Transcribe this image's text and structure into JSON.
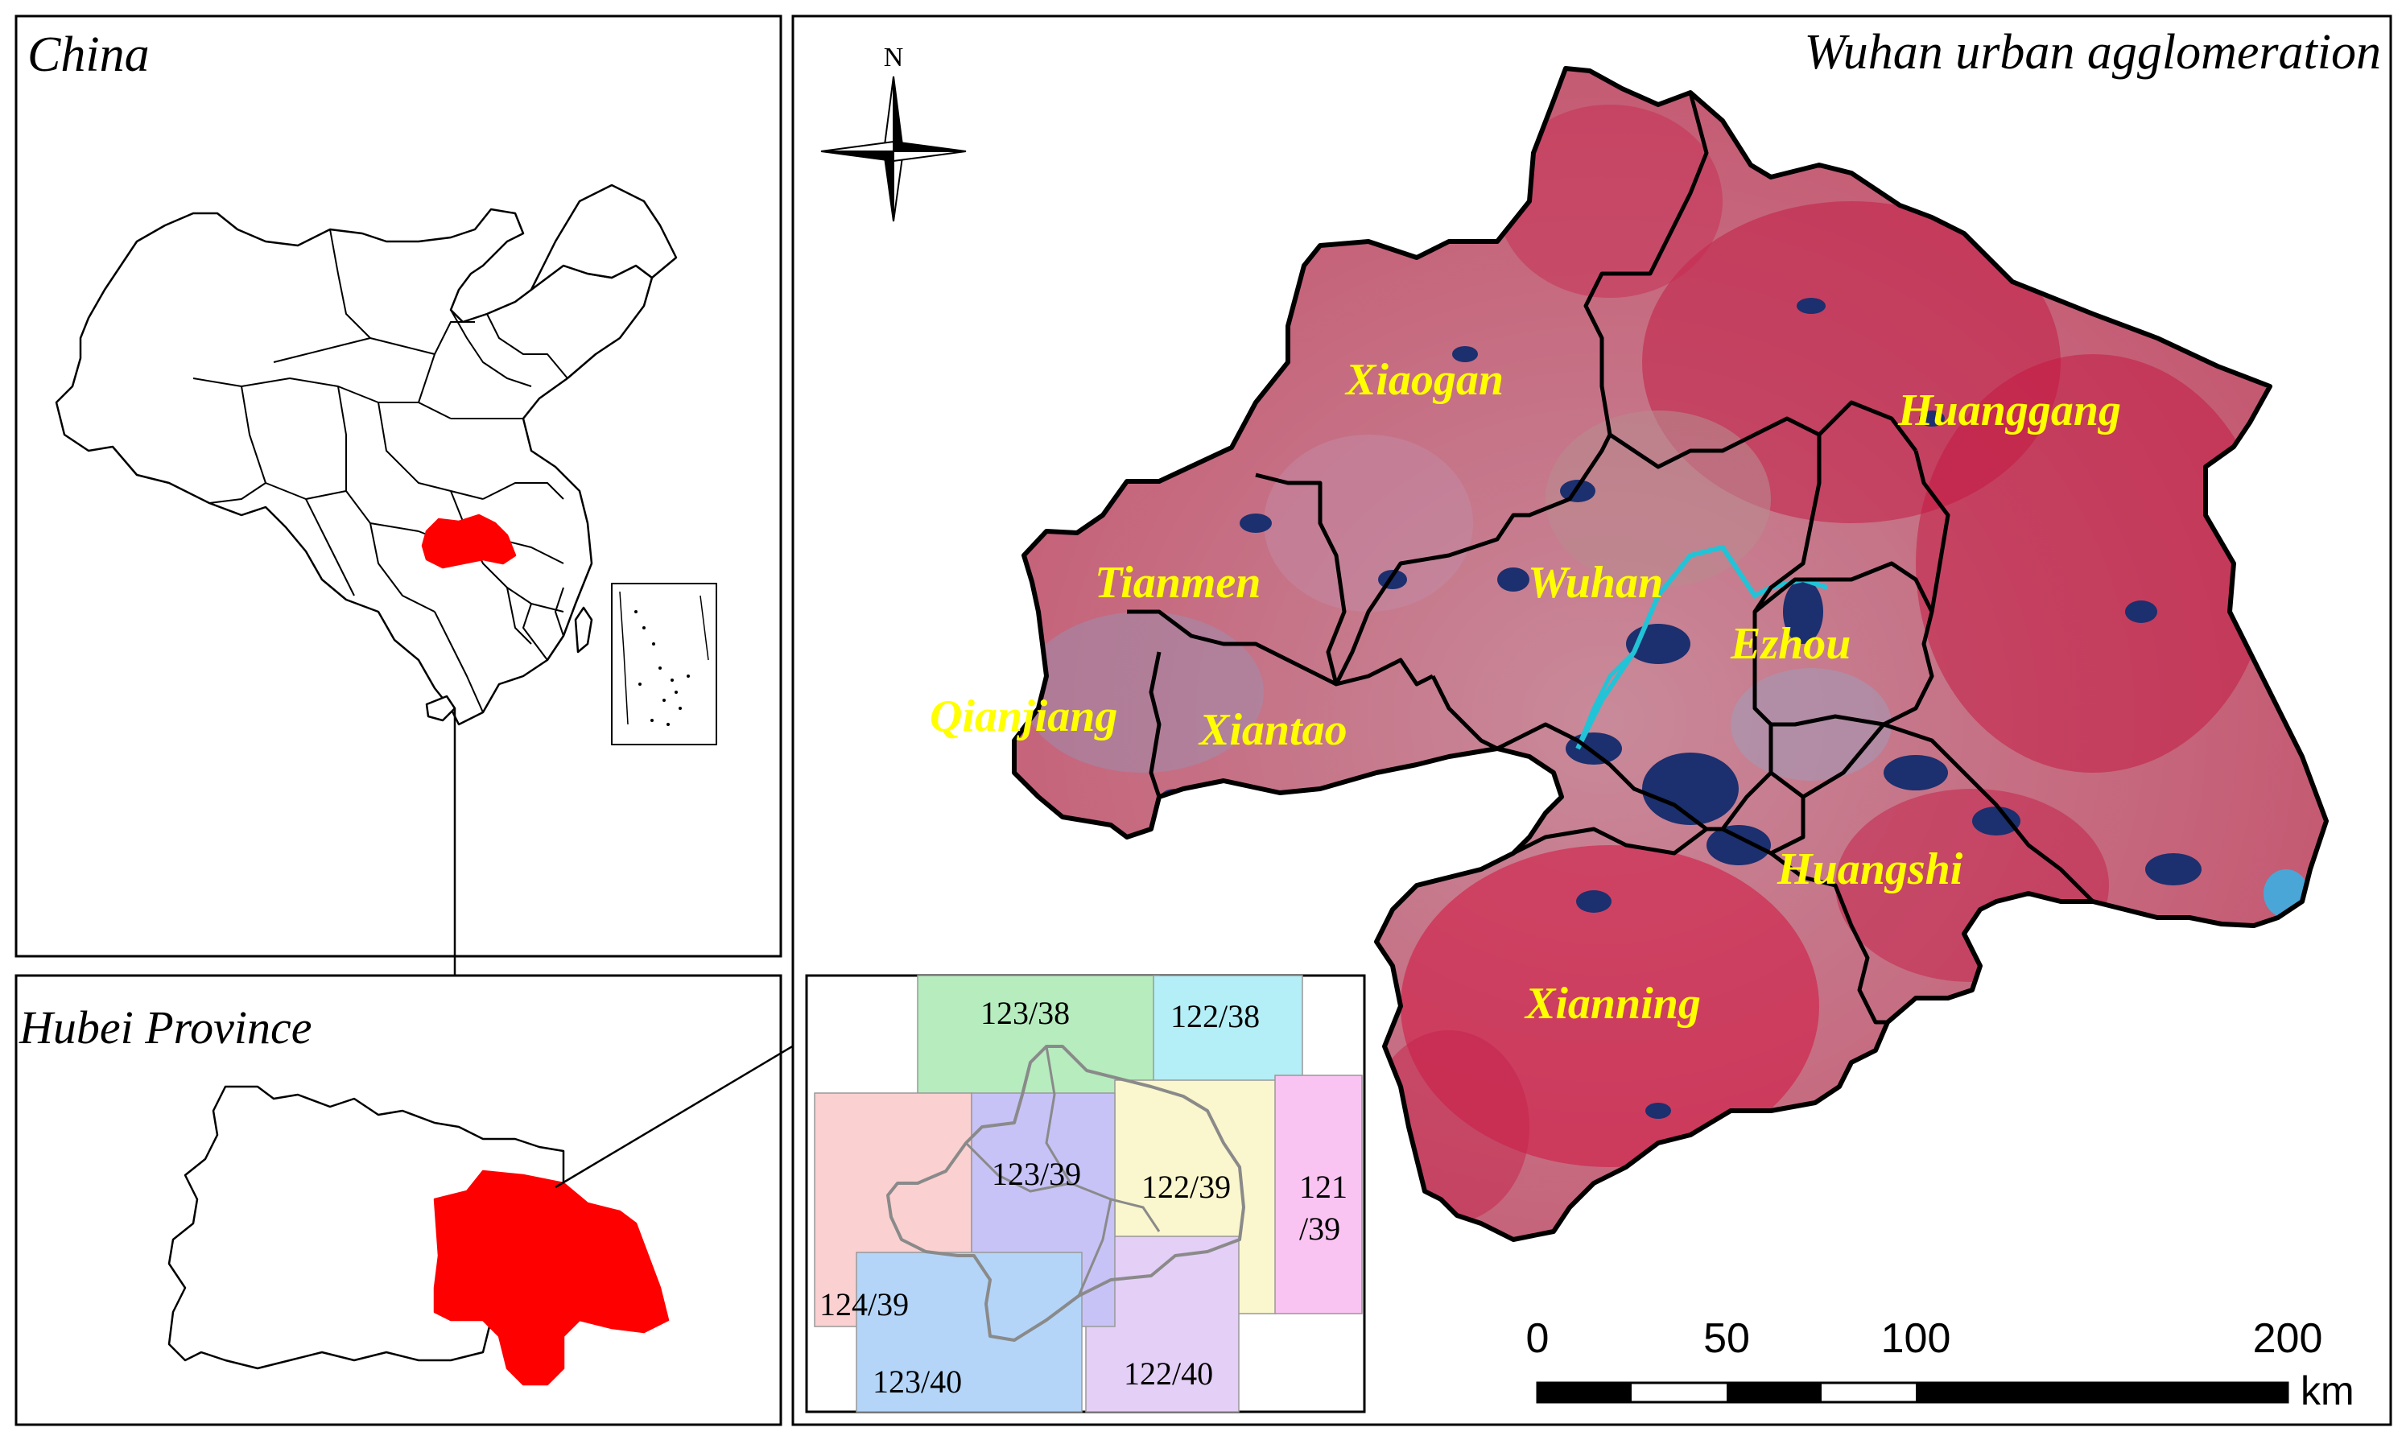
{
  "panels": {
    "china": {
      "title": "China"
    },
    "hubei": {
      "title": "Hubei Province"
    },
    "wuhan": {
      "title": "Wuhan urban agglomeration"
    }
  },
  "north_arrow": {
    "label": "N"
  },
  "cities": [
    {
      "id": "xiaogan",
      "name": "Xiaogan"
    },
    {
      "id": "huanggang",
      "name": "Huanggang"
    },
    {
      "id": "tianmen",
      "name": "Tianmen"
    },
    {
      "id": "wuhan",
      "name": "Wuhan"
    },
    {
      "id": "ezhou",
      "name": "Ezhou"
    },
    {
      "id": "qianjiang",
      "name": "Qianjiang"
    },
    {
      "id": "xiantao",
      "name": "Xiantao"
    },
    {
      "id": "huangshi",
      "name": "Huangshi"
    },
    {
      "id": "xianning",
      "name": "Xianning"
    }
  ],
  "scene_grid": {
    "tiles": [
      {
        "id": "123-38",
        "label": "123/38",
        "color": "#b6ecbe"
      },
      {
        "id": "122-38",
        "label": "122/38",
        "color": "#b4eef6"
      },
      {
        "id": "124-39",
        "label": "124/39",
        "color": "#fbd0d0"
      },
      {
        "id": "123-39",
        "label": "123/39",
        "color": "#c7c3f7"
      },
      {
        "id": "122-39",
        "label": "122/39",
        "color": "#faf6cd"
      },
      {
        "id": "121-39a",
        "label": "121",
        "color": "#f9c4f1"
      },
      {
        "id": "121-39b",
        "label": "/39",
        "color": "#f9c4f1"
      },
      {
        "id": "123-40",
        "label": "123/40",
        "color": "#b4d5f8"
      },
      {
        "id": "122-40",
        "label": "122/40",
        "color": "#e4cff6"
      }
    ]
  },
  "scale_bar": {
    "ticks": [
      "0",
      "50",
      "100",
      "200"
    ],
    "unit": "km"
  },
  "colors": {
    "highlight": "#ff0000",
    "city_label": "#ffff00",
    "imagery_base": "#b8435c",
    "water": "#1c2f6e",
    "river": "#22c3d6"
  }
}
